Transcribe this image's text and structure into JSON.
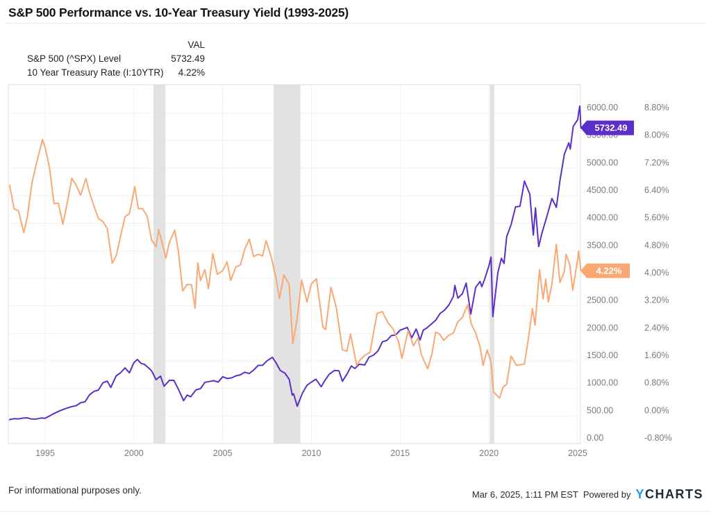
{
  "title": "S&P 500 Performance vs. 10-Year Treasury Yield (1993-2025)",
  "legend": {
    "val_header": "VAL",
    "items": [
      {
        "label": "S&P 500 (^SPX) Level",
        "value": "5732.49",
        "color": "#6a38d8"
      },
      {
        "label": "10 Year Treasury Rate (I:10YTR)",
        "value": "4.22%",
        "color": "#f9a873"
      }
    ]
  },
  "chart_data": {
    "type": "line",
    "title": "S&P 500 Performance vs. 10-Year Treasury Yield (1993-2025)",
    "grid": true,
    "x_axis": {
      "range": [
        1993.0,
        2025.35
      ],
      "ticks": [
        1995,
        2000,
        2005,
        2010,
        2015,
        2020,
        2025
      ],
      "tick_labels": [
        "1995",
        "2000",
        "2005",
        "2010",
        "2015",
        "2020",
        "2025"
      ]
    },
    "y_axes": {
      "spx": {
        "side": "right-inner",
        "min": 0,
        "max": 6000,
        "step": 500,
        "tick_labels": [
          "0.00",
          "500.00",
          "1000.00",
          "1500.00",
          "2000.00",
          "2500.00",
          "3000.00",
          "3500.00",
          "4000.00",
          "4500.00",
          "5000.00",
          "5500.00",
          "6000.00"
        ]
      },
      "rate": {
        "side": "right-outer",
        "min": -0.8,
        "max": 8.8,
        "step": 0.8,
        "tick_labels": [
          "-0.80%",
          "0.00%",
          "0.80%",
          "1.60%",
          "2.40%",
          "3.20%",
          "4.00%",
          "4.80%",
          "5.60%",
          "6.40%",
          "7.20%",
          "8.00%",
          "8.80%"
        ]
      }
    },
    "recessions": [
      [
        2001.1,
        2001.78
      ],
      [
        2007.87,
        2009.38
      ],
      [
        2020.05,
        2020.3
      ]
    ],
    "series": [
      {
        "name": "S&P 500 (^SPX) Level",
        "axis": "spx",
        "color": "#5b2ec9",
        "points": [
          [
            1993.0,
            435
          ],
          [
            1993.25,
            451
          ],
          [
            1993.5,
            448
          ],
          [
            1993.75,
            461
          ],
          [
            1994.0,
            466
          ],
          [
            1994.2,
            446
          ],
          [
            1994.5,
            444
          ],
          [
            1994.75,
            462
          ],
          [
            1995.0,
            459
          ],
          [
            1995.25,
            500
          ],
          [
            1995.5,
            544
          ],
          [
            1995.75,
            584
          ],
          [
            1996.0,
            616
          ],
          [
            1996.25,
            645
          ],
          [
            1996.5,
            671
          ],
          [
            1996.75,
            687
          ],
          [
            1997.0,
            741
          ],
          [
            1997.25,
            757
          ],
          [
            1997.5,
            885
          ],
          [
            1997.75,
            947
          ],
          [
            1998.0,
            970
          ],
          [
            1998.25,
            1102
          ],
          [
            1998.5,
            1133
          ],
          [
            1998.7,
            1017
          ],
          [
            1999.0,
            1229
          ],
          [
            1999.25,
            1286
          ],
          [
            1999.5,
            1373
          ],
          [
            1999.75,
            1283
          ],
          [
            2000.0,
            1469
          ],
          [
            2000.2,
            1527
          ],
          [
            2000.4,
            1455
          ],
          [
            2000.6,
            1436
          ],
          [
            2000.8,
            1380
          ],
          [
            2001.0,
            1320
          ],
          [
            2001.25,
            1160
          ],
          [
            2001.5,
            1224
          ],
          [
            2001.7,
            1041
          ],
          [
            2002.0,
            1148
          ],
          [
            2002.25,
            1147
          ],
          [
            2002.5,
            990
          ],
          [
            2002.75,
            815
          ],
          [
            2002.8,
            777
          ],
          [
            2003.0,
            880
          ],
          [
            2003.2,
            848
          ],
          [
            2003.5,
            975
          ],
          [
            2003.75,
            996
          ],
          [
            2004.0,
            1112
          ],
          [
            2004.25,
            1126
          ],
          [
            2004.5,
            1141
          ],
          [
            2004.75,
            1115
          ],
          [
            2005.0,
            1212
          ],
          [
            2005.25,
            1181
          ],
          [
            2005.5,
            1191
          ],
          [
            2005.75,
            1229
          ],
          [
            2006.0,
            1248
          ],
          [
            2006.25,
            1295
          ],
          [
            2006.5,
            1270
          ],
          [
            2006.75,
            1336
          ],
          [
            2007.0,
            1418
          ],
          [
            2007.25,
            1421
          ],
          [
            2007.5,
            1503
          ],
          [
            2007.8,
            1565
          ],
          [
            2008.0,
            1468
          ],
          [
            2008.25,
            1323
          ],
          [
            2008.5,
            1280
          ],
          [
            2008.75,
            1166
          ],
          [
            2008.92,
            880
          ],
          [
            2009.0,
            903
          ],
          [
            2009.2,
            677
          ],
          [
            2009.5,
            919
          ],
          [
            2009.75,
            1057
          ],
          [
            2010.0,
            1115
          ],
          [
            2010.25,
            1169
          ],
          [
            2010.55,
            1031
          ],
          [
            2010.75,
            1141
          ],
          [
            2011.0,
            1258
          ],
          [
            2011.3,
            1326
          ],
          [
            2011.55,
            1321
          ],
          [
            2011.75,
            1131
          ],
          [
            2012.0,
            1258
          ],
          [
            2012.25,
            1408
          ],
          [
            2012.45,
            1362
          ],
          [
            2012.7,
            1441
          ],
          [
            2013.0,
            1426
          ],
          [
            2013.25,
            1569
          ],
          [
            2013.5,
            1606
          ],
          [
            2013.75,
            1682
          ],
          [
            2014.0,
            1848
          ],
          [
            2014.25,
            1872
          ],
          [
            2014.5,
            1960
          ],
          [
            2014.75,
            1972
          ],
          [
            2015.0,
            2059
          ],
          [
            2015.4,
            2108
          ],
          [
            2015.65,
            1920
          ],
          [
            2015.9,
            2080
          ],
          [
            2016.12,
            1880
          ],
          [
            2016.3,
            2060
          ],
          [
            2016.5,
            2099
          ],
          [
            2016.75,
            2168
          ],
          [
            2017.0,
            2239
          ],
          [
            2017.25,
            2363
          ],
          [
            2017.5,
            2423
          ],
          [
            2017.75,
            2519
          ],
          [
            2018.0,
            2674
          ],
          [
            2018.08,
            2872
          ],
          [
            2018.25,
            2641
          ],
          [
            2018.5,
            2718
          ],
          [
            2018.72,
            2914
          ],
          [
            2018.98,
            2351
          ],
          [
            2019.25,
            2834
          ],
          [
            2019.5,
            2942
          ],
          [
            2019.6,
            2847
          ],
          [
            2019.75,
            2977
          ],
          [
            2020.0,
            3231
          ],
          [
            2020.12,
            3386
          ],
          [
            2020.22,
            2305
          ],
          [
            2020.5,
            3100
          ],
          [
            2020.7,
            3363
          ],
          [
            2020.85,
            3270
          ],
          [
            2021.0,
            3756
          ],
          [
            2021.25,
            3973
          ],
          [
            2021.5,
            4298
          ],
          [
            2021.75,
            4308
          ],
          [
            2022.0,
            4766
          ],
          [
            2022.3,
            4530
          ],
          [
            2022.5,
            3785
          ],
          [
            2022.62,
            4280
          ],
          [
            2022.8,
            3577
          ],
          [
            2023.0,
            3840
          ],
          [
            2023.25,
            4109
          ],
          [
            2023.55,
            4450
          ],
          [
            2023.8,
            4288
          ],
          [
            2024.0,
            4770
          ],
          [
            2024.25,
            5254
          ],
          [
            2024.5,
            5460
          ],
          [
            2024.58,
            5346
          ],
          [
            2024.75,
            5762
          ],
          [
            2025.0,
            5882
          ],
          [
            2025.07,
            6041
          ],
          [
            2025.12,
            6130
          ],
          [
            2025.18,
            5732.49
          ]
        ]
      },
      {
        "name": "10 Year Treasury Rate (I:10YTR)",
        "axis": "rate",
        "color": "#f9a873",
        "points": [
          [
            1993.0,
            6.7
          ],
          [
            1993.25,
            6.02
          ],
          [
            1993.5,
            5.96
          ],
          [
            1993.8,
            5.33
          ],
          [
            1994.0,
            5.79
          ],
          [
            1994.25,
            6.74
          ],
          [
            1994.5,
            7.32
          ],
          [
            1994.85,
            8.03
          ],
          [
            1995.0,
            7.81
          ],
          [
            1995.25,
            7.2
          ],
          [
            1995.5,
            6.17
          ],
          [
            1995.75,
            6.18
          ],
          [
            1996.0,
            5.57
          ],
          [
            1996.3,
            6.33
          ],
          [
            1996.5,
            6.91
          ],
          [
            1996.75,
            6.7
          ],
          [
            1997.0,
            6.42
          ],
          [
            1997.3,
            6.9
          ],
          [
            1997.5,
            6.49
          ],
          [
            1997.75,
            6.1
          ],
          [
            1998.0,
            5.74
          ],
          [
            1998.25,
            5.65
          ],
          [
            1998.5,
            5.45
          ],
          [
            1998.78,
            4.44
          ],
          [
            1999.0,
            4.65
          ],
          [
            1999.25,
            5.23
          ],
          [
            1999.5,
            5.79
          ],
          [
            1999.75,
            5.88
          ],
          [
            2000.05,
            6.66
          ],
          [
            2000.25,
            6.03
          ],
          [
            2000.5,
            6.02
          ],
          [
            2000.75,
            5.8
          ],
          [
            2001.0,
            5.11
          ],
          [
            2001.25,
            4.92
          ],
          [
            2001.4,
            5.42
          ],
          [
            2001.8,
            4.59
          ],
          [
            2002.0,
            5.05
          ],
          [
            2002.3,
            5.4
          ],
          [
            2002.5,
            4.8
          ],
          [
            2002.75,
            3.63
          ],
          [
            2003.0,
            3.82
          ],
          [
            2003.25,
            3.81
          ],
          [
            2003.45,
            3.13
          ],
          [
            2003.6,
            4.45
          ],
          [
            2003.75,
            3.94
          ],
          [
            2004.0,
            4.25
          ],
          [
            2004.2,
            3.7
          ],
          [
            2004.45,
            4.72
          ],
          [
            2004.7,
            4.12
          ],
          [
            2005.0,
            4.22
          ],
          [
            2005.25,
            4.48
          ],
          [
            2005.45,
            3.94
          ],
          [
            2005.75,
            4.33
          ],
          [
            2006.0,
            4.39
          ],
          [
            2006.25,
            4.85
          ],
          [
            2006.5,
            5.14
          ],
          [
            2006.75,
            4.63
          ],
          [
            2007.0,
            4.7
          ],
          [
            2007.25,
            4.65
          ],
          [
            2007.45,
            5.1
          ],
          [
            2007.75,
            4.59
          ],
          [
            2008.0,
            4.02
          ],
          [
            2008.2,
            3.41
          ],
          [
            2008.45,
            4.1
          ],
          [
            2008.75,
            3.82
          ],
          [
            2008.95,
            2.1
          ],
          [
            2009.2,
            2.85
          ],
          [
            2009.45,
            3.95
          ],
          [
            2009.75,
            3.31
          ],
          [
            2010.0,
            3.84
          ],
          [
            2010.28,
            3.99
          ],
          [
            2010.65,
            2.58
          ],
          [
            2010.8,
            2.51
          ],
          [
            2011.1,
            3.74
          ],
          [
            2011.4,
            3.16
          ],
          [
            2011.75,
            1.92
          ],
          [
            2012.0,
            1.88
          ],
          [
            2012.2,
            2.38
          ],
          [
            2012.55,
            1.47
          ],
          [
            2012.75,
            1.63
          ],
          [
            2013.0,
            1.76
          ],
          [
            2013.3,
            1.85
          ],
          [
            2013.7,
            2.98
          ],
          [
            2014.0,
            3.03
          ],
          [
            2014.3,
            2.72
          ],
          [
            2014.6,
            2.53
          ],
          [
            2014.9,
            2.17
          ],
          [
            2015.1,
            1.68
          ],
          [
            2015.45,
            2.48
          ],
          [
            2015.75,
            2.04
          ],
          [
            2016.0,
            2.27
          ],
          [
            2016.2,
            1.77
          ],
          [
            2016.55,
            1.37
          ],
          [
            2016.8,
            1.83
          ],
          [
            2017.0,
            2.44
          ],
          [
            2017.2,
            2.39
          ],
          [
            2017.45,
            2.2
          ],
          [
            2017.7,
            2.33
          ],
          [
            2018.0,
            2.41
          ],
          [
            2018.25,
            2.74
          ],
          [
            2018.5,
            2.86
          ],
          [
            2018.8,
            3.23
          ],
          [
            2019.0,
            2.68
          ],
          [
            2019.25,
            2.41
          ],
          [
            2019.5,
            2.01
          ],
          [
            2019.67,
            1.47
          ],
          [
            2019.9,
            1.92
          ],
          [
            2020.12,
            1.56
          ],
          [
            2020.25,
            0.7
          ],
          [
            2020.6,
            0.52
          ],
          [
            2020.8,
            0.84
          ],
          [
            2021.0,
            0.92
          ],
          [
            2021.25,
            1.74
          ],
          [
            2021.55,
            1.47
          ],
          [
            2021.75,
            1.49
          ],
          [
            2022.0,
            1.51
          ],
          [
            2022.25,
            2.34
          ],
          [
            2022.45,
            3.12
          ],
          [
            2022.6,
            2.64
          ],
          [
            2022.85,
            4.25
          ],
          [
            2023.05,
            3.4
          ],
          [
            2023.2,
            3.97
          ],
          [
            2023.35,
            3.31
          ],
          [
            2023.55,
            3.84
          ],
          [
            2023.8,
            4.99
          ],
          [
            2024.0,
            3.88
          ],
          [
            2024.25,
            4.2
          ],
          [
            2024.35,
            4.7
          ],
          [
            2024.55,
            4.4
          ],
          [
            2024.72,
            3.65
          ],
          [
            2025.0,
            4.57
          ],
          [
            2025.05,
            4.79
          ],
          [
            2025.18,
            4.22
          ]
        ]
      }
    ],
    "badges": [
      {
        "text": "5732.49",
        "axis": "spx",
        "value": 5732.49,
        "color": "#5b2ec9"
      },
      {
        "text": "4.22%",
        "axis": "rate",
        "value": 4.22,
        "color": "#f9a873"
      }
    ],
    "legend_position": "top-left"
  },
  "footer": {
    "disclaimer": "For informational purposes only.",
    "timestamp": "Mar 6, 2025, 1:11 PM EST",
    "powered_by": "Powered by",
    "logo_y": "Y",
    "logo_rest": "CHARTS",
    "logo_colors": {
      "y": "#2598ee",
      "rest": "#1d2a38"
    }
  }
}
